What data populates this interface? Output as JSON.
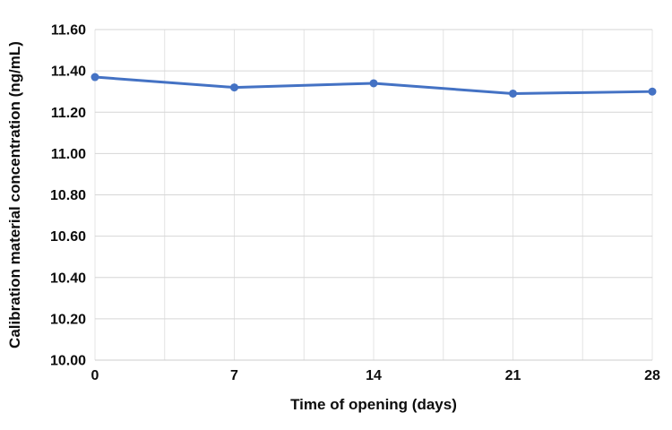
{
  "chart_data": {
    "type": "line",
    "title": "",
    "xlabel": "Time of opening (days)",
    "ylabel": "Calibration material concentration (ng/mL)",
    "x": [
      0,
      7,
      14,
      21,
      28
    ],
    "values": [
      11.37,
      11.32,
      11.34,
      11.29,
      11.3
    ],
    "xlim": [
      0,
      28
    ],
    "ylim": [
      10.0,
      11.6
    ],
    "x_tick_labels": [
      "0",
      "7",
      "14",
      "21",
      "28"
    ],
    "y_tick_labels": [
      "10.00",
      "10.20",
      "10.40",
      "10.60",
      "10.80",
      "11.00",
      "11.20",
      "11.40",
      "11.60"
    ],
    "x_grid_step": 3.5,
    "grid": true,
    "legend": "none",
    "colors": {
      "line": "#4472C4",
      "marker": "#4472C4",
      "h_gridline": "#D6D6D6",
      "v_gridline": "#E4E4E4",
      "axis_line": "#CCCCCC",
      "text": "#0d0d0d",
      "background": "#FFFFFF"
    }
  }
}
